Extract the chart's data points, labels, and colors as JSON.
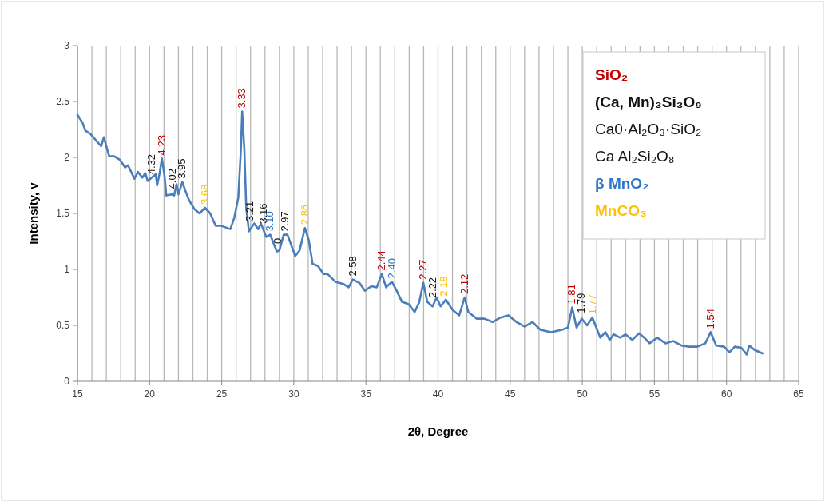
{
  "chart_data": {
    "type": "line",
    "xlabel": "2θ, Degree",
    "ylabel": "Intensity, v",
    "series": [
      {
        "color": "#4a7ebb",
        "x": [
          15,
          15.35,
          15.54,
          15.9,
          16.37,
          16.64,
          16.83,
          17.0,
          17.2,
          17.55,
          17.93,
          18.3,
          18.5,
          18.95,
          19.2,
          19.5,
          19.7,
          19.87,
          20.15,
          20.43,
          20.52,
          20.7,
          20.85,
          21.03,
          21.16,
          21.53,
          21.7,
          21.87,
          22.0,
          22.27,
          22.46,
          22.73,
          23.1,
          23.47,
          23.84,
          24.2,
          24.58,
          24.95,
          25.6,
          25.87,
          26.15,
          26.33,
          26.42,
          26.57,
          26.7,
          26.89,
          27.25,
          27.53,
          27.72,
          28.08,
          28.36,
          28.82,
          29.0,
          29.3,
          29.56,
          29.84,
          30.1,
          30.4,
          30.77,
          31.04,
          31.3,
          31.68,
          32.05,
          32.33,
          32.88,
          33.44,
          33.8,
          34.09,
          34.55,
          34.92,
          35.38,
          35.75,
          36.1,
          36.4,
          36.8,
          37.13,
          37.5,
          37.96,
          38.38,
          38.7,
          38.98,
          39.25,
          39.62,
          39.9,
          40.18,
          40.54,
          41.0,
          41.47,
          41.84,
          42.1,
          42.67,
          43.22,
          43.78,
          44.33,
          44.88,
          45.44,
          46.0,
          46.55,
          47.1,
          47.84,
          48.57,
          49.0,
          49.3,
          49.6,
          49.96,
          50.33,
          50.7,
          50.97,
          51.25,
          51.6,
          51.9,
          52.17,
          52.63,
          53.0,
          53.47,
          53.93,
          54.3,
          54.66,
          55.2,
          55.77,
          56.3,
          56.88,
          57.43,
          57.98,
          58.53,
          58.9,
          59.28,
          59.83,
          60.2,
          60.57,
          61.03,
          61.4,
          61.58,
          61.95,
          62.5
        ],
        "values": [
          2.38,
          2.31,
          2.24,
          2.21,
          2.14,
          2.1,
          2.18,
          2.1,
          2.01,
          2.01,
          1.98,
          1.91,
          1.93,
          1.81,
          1.87,
          1.82,
          1.86,
          1.79,
          1.82,
          1.85,
          1.75,
          1.86,
          1.99,
          1.84,
          1.66,
          1.67,
          1.66,
          1.76,
          1.67,
          1.78,
          1.71,
          1.62,
          1.54,
          1.5,
          1.55,
          1.5,
          1.39,
          1.39,
          1.36,
          1.46,
          1.64,
          2.07,
          2.41,
          2.07,
          1.55,
          1.34,
          1.41,
          1.36,
          1.41,
          1.29,
          1.31,
          1.16,
          1.17,
          1.31,
          1.31,
          1.21,
          1.12,
          1.17,
          1.37,
          1.26,
          1.05,
          1.03,
          0.96,
          0.96,
          0.89,
          0.87,
          0.84,
          0.91,
          0.88,
          0.81,
          0.85,
          0.84,
          0.96,
          0.84,
          0.89,
          0.81,
          0.71,
          0.69,
          0.62,
          0.71,
          0.88,
          0.71,
          0.67,
          0.75,
          0.67,
          0.73,
          0.64,
          0.59,
          0.75,
          0.62,
          0.56,
          0.56,
          0.53,
          0.57,
          0.59,
          0.53,
          0.49,
          0.53,
          0.46,
          0.44,
          0.46,
          0.48,
          0.66,
          0.48,
          0.56,
          0.5,
          0.57,
          0.48,
          0.39,
          0.44,
          0.37,
          0.42,
          0.39,
          0.42,
          0.37,
          0.43,
          0.39,
          0.34,
          0.39,
          0.34,
          0.36,
          0.32,
          0.31,
          0.31,
          0.34,
          0.44,
          0.32,
          0.31,
          0.26,
          0.31,
          0.3,
          0.24,
          0.32,
          0.28,
          0.25
        ]
      }
    ],
    "xlim": [
      15,
      65
    ],
    "xticks": [
      15,
      {
        "value": 16,
        "label": null
      },
      {
        "value": 17,
        "label": null
      },
      {
        "value": 18,
        "label": null
      },
      {
        "value": 19,
        "label": null
      },
      20,
      {
        "value": 21,
        "label": null
      },
      {
        "value": 22,
        "label": null
      },
      {
        "value": 23,
        "label": null
      },
      {
        "value": 24,
        "label": null
      },
      25,
      {
        "value": 26,
        "label": null
      },
      {
        "value": 27,
        "label": null
      },
      {
        "value": 28,
        "label": null
      },
      {
        "value": 29,
        "label": null
      },
      30,
      {
        "value": 31,
        "label": null
      },
      {
        "value": 32,
        "label": null
      },
      {
        "value": 33,
        "label": null
      },
      {
        "value": 34,
        "label": null
      },
      35,
      {
        "value": 36,
        "label": null
      },
      {
        "value": 37,
        "label": null
      },
      {
        "value": 38,
        "label": null
      },
      {
        "value": 39,
        "label": null
      },
      40,
      {
        "value": 41,
        "label": null
      },
      {
        "value": 42,
        "label": null
      },
      {
        "value": 43,
        "label": null
      },
      {
        "value": 44,
        "label": null
      },
      45,
      {
        "value": 46,
        "label": null
      },
      {
        "value": 47,
        "label": null
      },
      {
        "value": 48,
        "label": null
      },
      {
        "value": 49,
        "label": null
      },
      50,
      {
        "value": 51,
        "label": null
      },
      {
        "value": 52,
        "label": null
      },
      {
        "value": 53,
        "label": null
      },
      {
        "value": 54,
        "label": null
      },
      55,
      {
        "value": 56,
        "label": null
      },
      {
        "value": 57,
        "label": null
      },
      {
        "value": 58,
        "label": null
      },
      {
        "value": 59,
        "label": null
      },
      60,
      {
        "value": 61,
        "label": null
      },
      {
        "value": 62,
        "label": null
      },
      {
        "value": 63,
        "label": null
      },
      {
        "value": 64,
        "label": null
      },
      65
    ],
    "ylim": [
      0,
      3
    ],
    "yticks": [
      0,
      0.5,
      1,
      1.5,
      2,
      2.5,
      3
    ],
    "grid": "x",
    "marker": "none",
    "line_style": "solid",
    "annotations": [
      {
        "text": "4.32",
        "x": 20.15,
        "y": 1.82
      },
      {
        "text": "4.23",
        "x": 20.85,
        "y": 1.99
      },
      {
        "text": "4.02",
        "x": 21.6,
        "y": 1.69
      },
      {
        "text": "3.95",
        "x": 22.27,
        "y": 1.78
      },
      {
        "text": "3.68",
        "x": 23.84,
        "y": 1.55
      },
      {
        "text": "3.33",
        "x": 26.42,
        "y": 2.41
      },
      {
        "text": "3.21",
        "x": 26.95,
        "y": 1.4
      },
      {
        "text": "3.16",
        "x": 27.9,
        "y": 1.38
      },
      {
        "text": "3.10",
        "x": 28.36,
        "y": 1.31
      },
      {
        "text": "0",
        "x": 28.9,
        "y": 1.2
      },
      {
        "text": "2.97",
        "x": 29.4,
        "y": 1.31
      },
      {
        "text": "2.86",
        "x": 30.77,
        "y": 1.37
      },
      {
        "text": "2.58",
        "x": 34.09,
        "y": 0.91
      },
      {
        "text": "2.44",
        "x": 36.1,
        "y": 0.96
      },
      {
        "text": "2.40",
        "x": 36.8,
        "y": 0.89
      },
      {
        "text": "2.27",
        "x": 38.98,
        "y": 0.88
      },
      {
        "text": "2.22",
        "x": 39.62,
        "y": 0.72
      },
      {
        "text": "2.18",
        "x": 40.4,
        "y": 0.73
      },
      {
        "text": "2.12",
        "x": 41.84,
        "y": 0.75
      },
      {
        "text": "1.81",
        "x": 49.3,
        "y": 0.66
      },
      {
        "text": "1.79",
        "x": 49.96,
        "y": 0.58
      },
      {
        "text": "1.77",
        "x": 50.7,
        "y": 0.57
      },
      {
        "text": "1.54",
        "x": 58.9,
        "y": 0.44
      },
      "SiO₂",
      "(Ca, Mn)₃Si₃O₉",
      "Ca0·Al₂O₃·SiO₂",
      "Ca Al₂Si₂O₈",
      "β MnO₂",
      "MnCO₃"
    ]
  }
}
